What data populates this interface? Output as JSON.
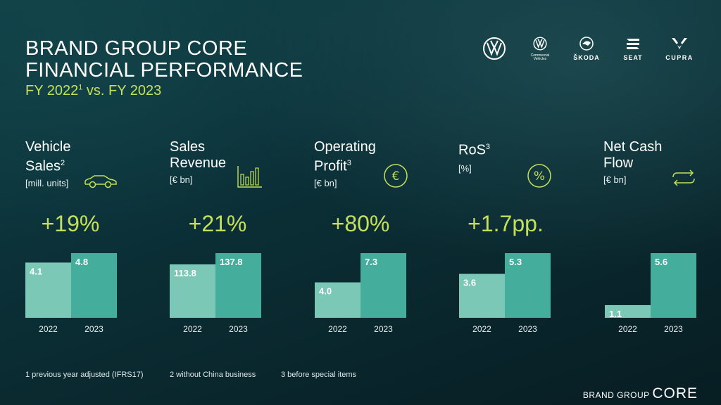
{
  "title_line1": "BRAND GROUP CORE",
  "title_line2": "FINANCIAL PERFORMANCE",
  "subtitle_prefix": "FY 2022",
  "subtitle_sup": "1",
  "subtitle_suffix": " vs. FY 2023",
  "logos": [
    {
      "name": "vw-logo",
      "text": ""
    },
    {
      "name": "vw-commercial-logo",
      "text": "Commercial Vehicles"
    },
    {
      "name": "skoda-logo",
      "text": "ŠKODA"
    },
    {
      "name": "seat-logo",
      "text": "SEAT"
    },
    {
      "name": "cupra-logo",
      "text": "CUPRA"
    }
  ],
  "kpis": [
    {
      "label1": "Vehicle",
      "label2": "Sales",
      "sup": "2",
      "unit": "[mill. units]",
      "change": "+19%",
      "icon": "car-icon"
    },
    {
      "label1": "Sales",
      "label2": "Revenue",
      "sup": "",
      "unit": "[€ bn]",
      "change": "+21%",
      "icon": "bar-chart-icon"
    },
    {
      "label1": "Operating",
      "label2": "Profit",
      "sup": "3",
      "unit": "[€ bn]",
      "change": "+80%",
      "icon": "euro-icon"
    },
    {
      "label1": "RoS",
      "label2": "",
      "sup": "3",
      "unit": "[%]",
      "change": "+1.7pp.",
      "icon": "percent-icon"
    },
    {
      "label1": "Net Cash",
      "label2": "Flow",
      "sup": "",
      "unit": "[€ bn]",
      "change": "",
      "icon": "cash-flow-icon"
    }
  ],
  "chart_data": [
    {
      "type": "bar",
      "title": "Vehicle Sales",
      "categories": [
        "2022",
        "2023"
      ],
      "values": [
        4.1,
        4.8
      ],
      "labels": [
        "4.1",
        "4.8"
      ]
    },
    {
      "type": "bar",
      "title": "Sales Revenue",
      "categories": [
        "2022",
        "2023"
      ],
      "values": [
        113.8,
        137.8
      ],
      "labels": [
        "113.8",
        "137.8"
      ]
    },
    {
      "type": "bar",
      "title": "Operating Profit",
      "categories": [
        "2022",
        "2023"
      ],
      "values": [
        4.0,
        7.3
      ],
      "labels": [
        "4.0",
        "7.3"
      ]
    },
    {
      "type": "bar",
      "title": "RoS",
      "categories": [
        "2022",
        "2023"
      ],
      "values": [
        3.6,
        5.3
      ],
      "labels": [
        "3.6",
        "5.3"
      ]
    },
    {
      "type": "bar",
      "title": "Net Cash Flow",
      "categories": [
        "2022",
        "2023"
      ],
      "values": [
        1.1,
        5.6
      ],
      "labels": [
        "1.1",
        "5.6"
      ]
    }
  ],
  "colors": {
    "bar_2022": "#7cc8b7",
    "bar_2023": "#45ad9c",
    "accent": "#c4e05a"
  },
  "footnotes": [
    "1 previous year adjusted (IFRS17)",
    "2 without China business",
    "3 before special items"
  ],
  "brand_small": "BRAND GROUP",
  "brand_big": "CORE"
}
